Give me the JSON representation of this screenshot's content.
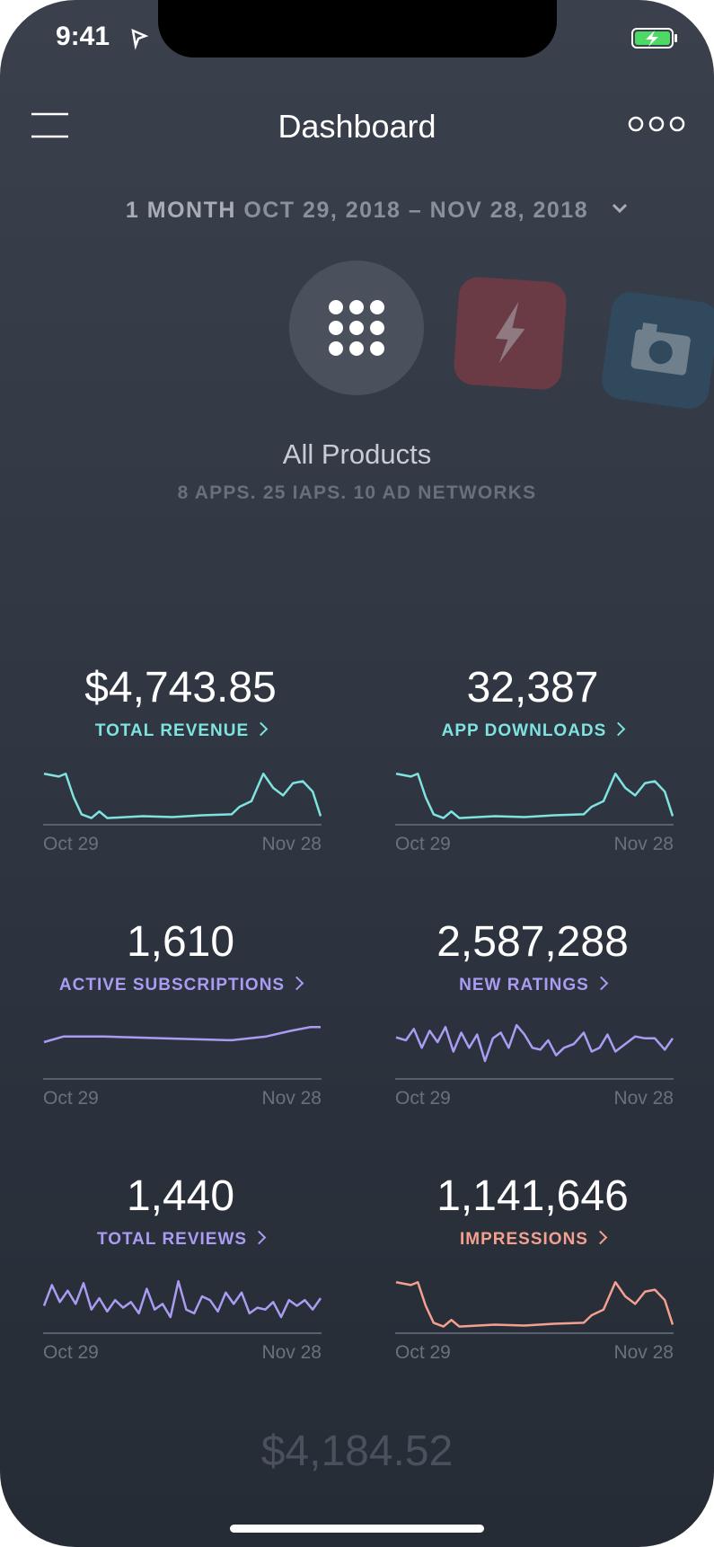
{
  "status": {
    "time": "9:41"
  },
  "header": {
    "title": "Dashboard"
  },
  "date_range": {
    "period": "1 MONTH",
    "range": "OCT 29, 2018 – NOV 28, 2018"
  },
  "products": {
    "name": "All Products",
    "summary": "8 APPS. 25 IAPS. 10 AD NETWORKS"
  },
  "metrics": [
    {
      "value": "$4,743.85",
      "label": "TOTAL REVENUE",
      "start": "Oct 29",
      "end": "Nov 28"
    },
    {
      "value": "32,387",
      "label": "APP DOWNLOADS",
      "start": "Oct 29",
      "end": "Nov 28"
    },
    {
      "value": "1,610",
      "label": "ACTIVE SUBSCRIPTIONS",
      "start": "Oct 29",
      "end": "Nov 28"
    },
    {
      "value": "2,587,288",
      "label": "NEW RATINGS",
      "start": "Oct 29",
      "end": "Nov 28"
    },
    {
      "value": "1,440",
      "label": "TOTAL REVIEWS",
      "start": "Oct 29",
      "end": "Nov 28"
    },
    {
      "value": "1,141,646",
      "label": "IMPRESSIONS",
      "start": "Oct 29",
      "end": "Nov 28"
    }
  ],
  "footer": {
    "value": "$4,184.52"
  }
}
